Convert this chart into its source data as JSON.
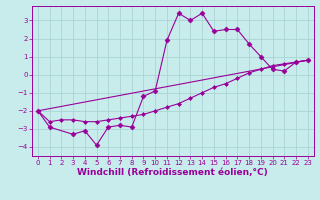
{
  "background_color": "#c8ecec",
  "grid_color": "#aad4d4",
  "line_color": "#990099",
  "marker_color": "#990099",
  "xlabel": "Windchill (Refroidissement éolien,°C)",
  "xlim": [
    -0.5,
    23.5
  ],
  "ylim": [
    -4.5,
    3.8
  ],
  "yticks": [
    -4,
    -3,
    -2,
    -1,
    0,
    1,
    2,
    3
  ],
  "xticks": [
    0,
    1,
    2,
    3,
    4,
    5,
    6,
    7,
    8,
    9,
    10,
    11,
    12,
    13,
    14,
    15,
    16,
    17,
    18,
    19,
    20,
    21,
    22,
    23
  ],
  "line1_x": [
    0,
    1,
    3,
    4,
    5,
    6,
    7,
    8,
    9,
    10,
    11,
    12,
    13,
    14,
    15,
    16,
    17,
    18,
    19,
    20,
    21,
    22,
    23
  ],
  "line1_y": [
    -2.0,
    -2.9,
    -3.3,
    -3.1,
    -3.9,
    -2.9,
    -2.8,
    -2.9,
    -1.2,
    -0.9,
    1.9,
    3.4,
    3.0,
    3.4,
    2.4,
    2.5,
    2.5,
    1.7,
    1.0,
    0.3,
    0.2,
    0.7,
    0.8
  ],
  "line2_x": [
    0,
    1,
    2,
    3,
    4,
    5,
    6,
    7,
    8,
    9,
    10,
    11,
    12,
    13,
    14,
    15,
    16,
    17,
    18,
    19,
    20,
    21,
    22,
    23
  ],
  "line2_y": [
    -2.0,
    -2.6,
    -2.5,
    -2.5,
    -2.6,
    -2.6,
    -2.5,
    -2.4,
    -2.3,
    -2.2,
    -2.0,
    -1.8,
    -1.6,
    -1.3,
    -1.0,
    -0.7,
    -0.5,
    -0.2,
    0.1,
    0.3,
    0.5,
    0.6,
    0.7,
    0.8
  ],
  "line3_x": [
    0,
    23
  ],
  "line3_y": [
    -2.0,
    0.8
  ],
  "font_color": "#990099",
  "tick_fontsize": 5.0,
  "label_fontsize": 6.5,
  "spine_color": "#990099"
}
